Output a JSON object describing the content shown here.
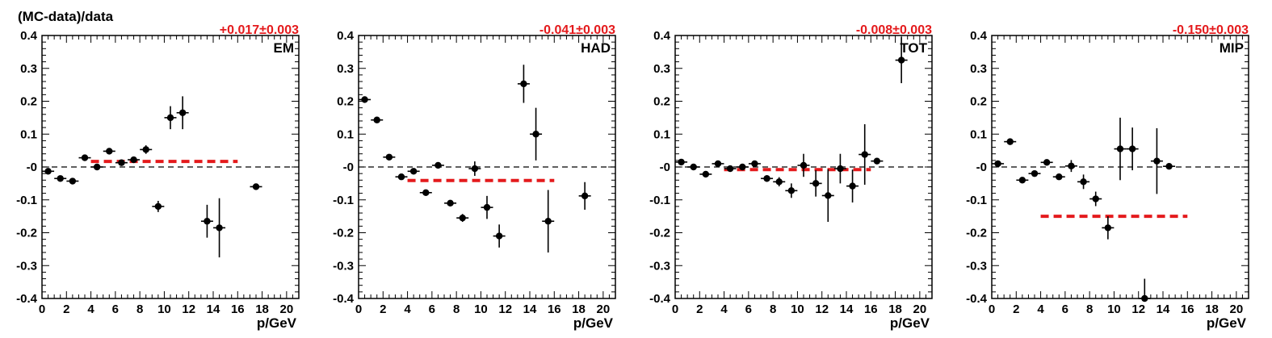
{
  "figure": {
    "ylabel": "(MC-data)/data"
  },
  "chart_data": [
    {
      "type": "scatter",
      "label": "EM",
      "fit_text": "+0.017±0.003",
      "fit_value": 0.017,
      "fit_range": [
        4,
        16
      ],
      "xlabel": "p/GeV",
      "xlim": [
        0,
        21
      ],
      "ylim": [
        -0.4,
        0.4
      ],
      "xticks": [
        "0",
        "2",
        "4",
        "6",
        "8",
        "10",
        "12",
        "14",
        "16",
        "18",
        "20"
      ],
      "yticks": [
        "-0.4",
        "-0.3",
        "-0.2",
        "-0.1",
        "-0",
        "0.1",
        "0.2",
        "0.3",
        "0.4"
      ],
      "points": [
        {
          "x": 0.5,
          "y": -0.013,
          "err": 0.006
        },
        {
          "x": 1.5,
          "y": -0.035,
          "err": 0.006
        },
        {
          "x": 2.5,
          "y": -0.043,
          "err": 0.006
        },
        {
          "x": 3.5,
          "y": 0.028,
          "err": 0.006
        },
        {
          "x": 4.5,
          "y": 0.0,
          "err": 0.006
        },
        {
          "x": 5.5,
          "y": 0.048,
          "err": 0.008
        },
        {
          "x": 6.5,
          "y": 0.013,
          "err": 0.008
        },
        {
          "x": 7.5,
          "y": 0.022,
          "err": 0.008
        },
        {
          "x": 8.5,
          "y": 0.053,
          "err": 0.013
        },
        {
          "x": 9.5,
          "y": -0.12,
          "err": 0.017
        },
        {
          "x": 10.5,
          "y": 0.15,
          "err": 0.035
        },
        {
          "x": 11.5,
          "y": 0.165,
          "err": 0.05
        },
        {
          "x": 13.5,
          "y": -0.165,
          "err": 0.05
        },
        {
          "x": 14.5,
          "y": -0.185,
          "err": 0.09
        },
        {
          "x": 17.5,
          "y": -0.06,
          "err": 0.008
        }
      ]
    },
    {
      "type": "scatter",
      "label": "HAD",
      "fit_text": "-0.041±0.003",
      "fit_value": -0.041,
      "fit_range": [
        4,
        16
      ],
      "xlabel": "p/GeV",
      "xlim": [
        0,
        21
      ],
      "ylim": [
        -0.4,
        0.4
      ],
      "xticks": [
        "0",
        "2",
        "4",
        "6",
        "8",
        "10",
        "12",
        "14",
        "16",
        "18",
        "20"
      ],
      "yticks": [
        "-0.4",
        "-0.3",
        "-0.2",
        "-0.1",
        "-0",
        "0.1",
        "0.2",
        "0.3",
        "0.4"
      ],
      "points": [
        {
          "x": 0.5,
          "y": 0.205,
          "err": 0.006
        },
        {
          "x": 1.5,
          "y": 0.143,
          "err": 0.006
        },
        {
          "x": 2.5,
          "y": 0.03,
          "err": 0.006
        },
        {
          "x": 3.5,
          "y": -0.03,
          "err": 0.006
        },
        {
          "x": 4.5,
          "y": -0.013,
          "err": 0.006
        },
        {
          "x": 5.5,
          "y": -0.078,
          "err": 0.006
        },
        {
          "x": 6.5,
          "y": 0.005,
          "err": 0.008
        },
        {
          "x": 7.5,
          "y": -0.11,
          "err": 0.008
        },
        {
          "x": 8.5,
          "y": -0.155,
          "err": 0.012
        },
        {
          "x": 9.5,
          "y": -0.005,
          "err": 0.022
        },
        {
          "x": 10.5,
          "y": -0.123,
          "err": 0.035
        },
        {
          "x": 11.5,
          "y": -0.21,
          "err": 0.035
        },
        {
          "x": 13.5,
          "y": 0.253,
          "err": 0.058
        },
        {
          "x": 14.5,
          "y": 0.1,
          "err": 0.08
        },
        {
          "x": 15.5,
          "y": -0.165,
          "err": 0.095
        },
        {
          "x": 18.5,
          "y": -0.088,
          "err": 0.042
        }
      ]
    },
    {
      "type": "scatter",
      "label": "TOT",
      "fit_text": "-0.008±0.003",
      "fit_value": -0.008,
      "fit_range": [
        4,
        16
      ],
      "xlabel": "p/GeV",
      "xlim": [
        0,
        21
      ],
      "ylim": [
        -0.4,
        0.4
      ],
      "xticks": [
        "0",
        "2",
        "4",
        "6",
        "8",
        "10",
        "12",
        "14",
        "16",
        "18",
        "20"
      ],
      "yticks": [
        "-0.4",
        "-0.3",
        "-0.2",
        "-0.1",
        "-0",
        "0.1",
        "0.2",
        "0.3",
        "0.4"
      ],
      "points": [
        {
          "x": 0.5,
          "y": 0.015,
          "err": 0.006
        },
        {
          "x": 1.5,
          "y": 0.0,
          "err": 0.006
        },
        {
          "x": 2.5,
          "y": -0.022,
          "err": 0.006
        },
        {
          "x": 3.5,
          "y": 0.01,
          "err": 0.006
        },
        {
          "x": 4.5,
          "y": -0.005,
          "err": 0.006
        },
        {
          "x": 5.5,
          "y": 0.0,
          "err": 0.006
        },
        {
          "x": 6.5,
          "y": 0.01,
          "err": 0.006
        },
        {
          "x": 7.5,
          "y": -0.035,
          "err": 0.01
        },
        {
          "x": 8.5,
          "y": -0.045,
          "err": 0.014
        },
        {
          "x": 9.5,
          "y": -0.072,
          "err": 0.022
        },
        {
          "x": 10.5,
          "y": 0.005,
          "err": 0.035
        },
        {
          "x": 11.5,
          "y": -0.05,
          "err": 0.04
        },
        {
          "x": 12.5,
          "y": -0.087,
          "err": 0.08
        },
        {
          "x": 13.5,
          "y": -0.005,
          "err": 0.045
        },
        {
          "x": 14.5,
          "y": -0.058,
          "err": 0.05
        },
        {
          "x": 15.5,
          "y": 0.038,
          "err": 0.092
        },
        {
          "x": 16.5,
          "y": 0.018,
          "err": 0.008
        },
        {
          "x": 18.5,
          "y": 0.325,
          "err": 0.07
        }
      ]
    },
    {
      "type": "scatter",
      "label": "MIP",
      "fit_text": "-0.150±0.003",
      "fit_value": -0.15,
      "fit_range": [
        4,
        16
      ],
      "xlabel": "p/GeV",
      "xlim": [
        0,
        21
      ],
      "ylim": [
        -0.4,
        0.4
      ],
      "xticks": [
        "0",
        "2",
        "4",
        "6",
        "8",
        "10",
        "12",
        "14",
        "16",
        "18",
        "20"
      ],
      "yticks": [
        "-0.4",
        "-0.3",
        "-0.2",
        "-0.1",
        "-0",
        "0.1",
        "0.2",
        "0.3",
        "0.4"
      ],
      "points": [
        {
          "x": 0.5,
          "y": 0.01,
          "err": 0.006
        },
        {
          "x": 1.5,
          "y": 0.077,
          "err": 0.006
        },
        {
          "x": 2.5,
          "y": -0.04,
          "err": 0.006
        },
        {
          "x": 3.5,
          "y": -0.02,
          "err": 0.006
        },
        {
          "x": 4.5,
          "y": 0.014,
          "err": 0.006
        },
        {
          "x": 5.5,
          "y": -0.03,
          "err": 0.006
        },
        {
          "x": 6.5,
          "y": 0.003,
          "err": 0.018
        },
        {
          "x": 7.5,
          "y": -0.045,
          "err": 0.022
        },
        {
          "x": 8.5,
          "y": -0.097,
          "err": 0.022
        },
        {
          "x": 9.5,
          "y": -0.185,
          "err": 0.035
        },
        {
          "x": 10.5,
          "y": 0.055,
          "err": 0.095
        },
        {
          "x": 11.5,
          "y": 0.055,
          "err": 0.065
        },
        {
          "x": 12.5,
          "y": -0.4,
          "err": 0.06
        },
        {
          "x": 13.5,
          "y": 0.018,
          "err": 0.1
        },
        {
          "x": 14.5,
          "y": 0.002,
          "err": 0.008
        }
      ]
    }
  ],
  "colors": {
    "points": "#000000",
    "fit": "#e41a1c",
    "fit_label": "#e41a1c",
    "zero_line": "#000000",
    "frame": "#000000"
  }
}
